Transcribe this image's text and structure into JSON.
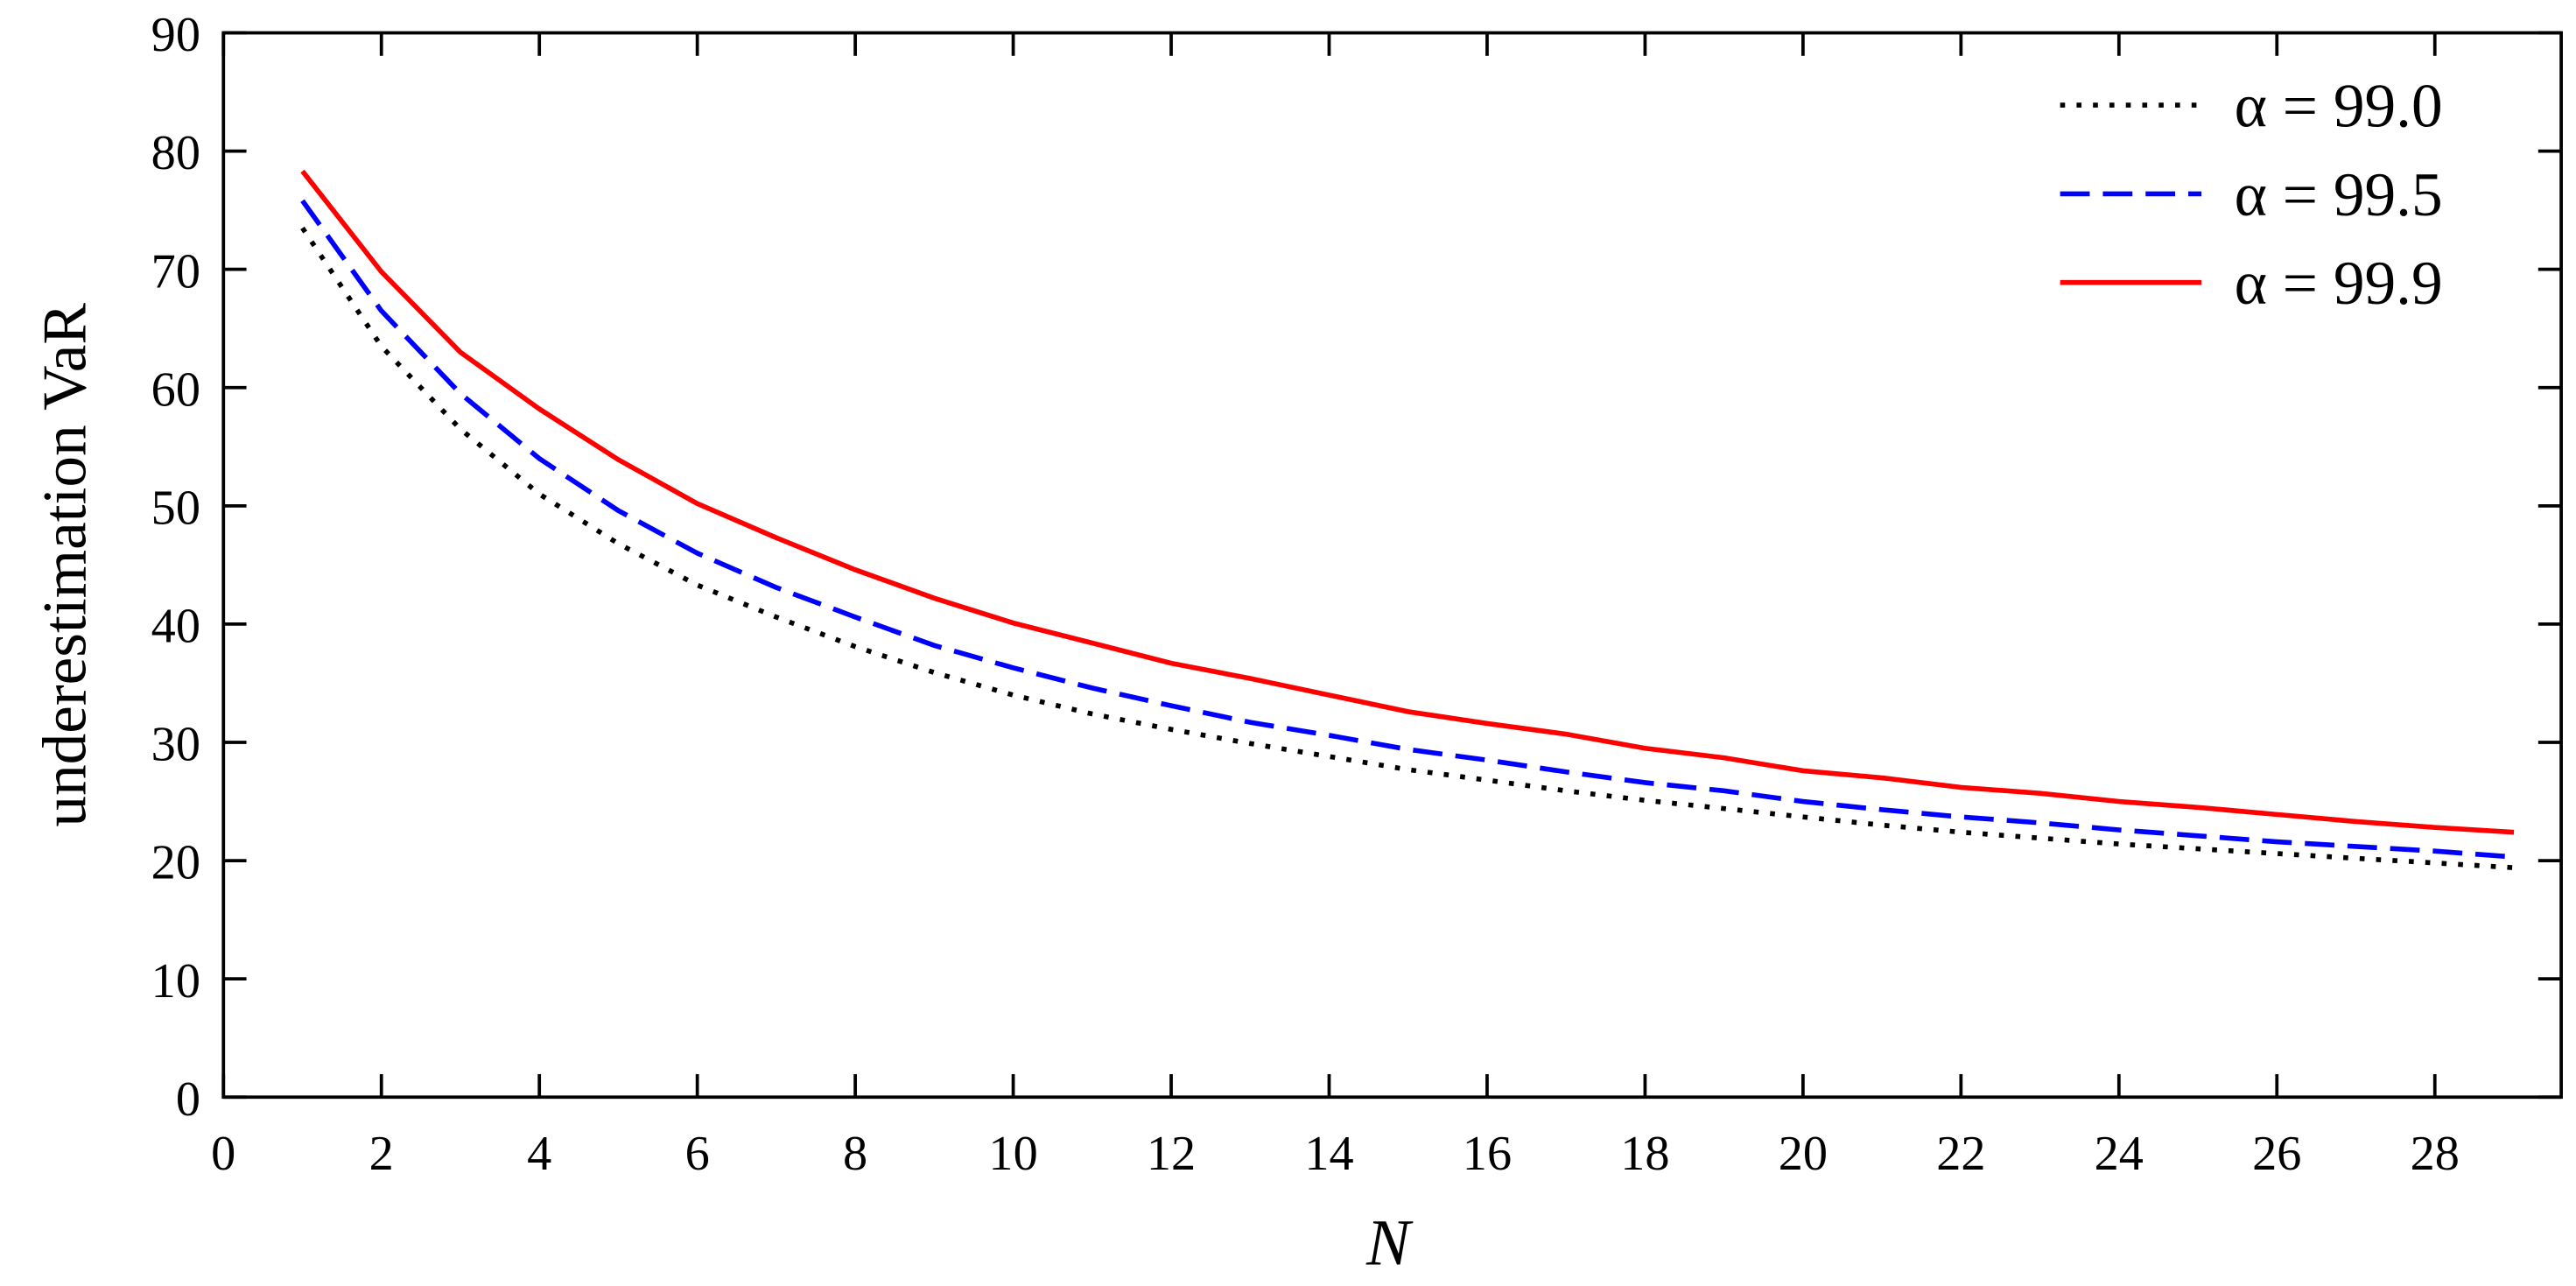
{
  "chart_data": {
    "type": "line",
    "x_label": "N",
    "y_label": "underestimation VaR",
    "x": [
      1,
      2,
      3,
      4,
      5,
      6,
      7,
      8,
      9,
      10,
      11,
      12,
      13,
      14,
      15,
      16,
      17,
      18,
      19,
      20,
      21,
      22,
      23,
      24,
      25,
      26,
      27,
      28,
      29
    ],
    "series": [
      {
        "name": "α = 99.0",
        "color": "#000000",
        "dash": "dotted",
        "values": [
          73.5,
          63.5,
          56.5,
          51.0,
          46.8,
          43.3,
          40.6,
          38.1,
          35.9,
          34.0,
          32.4,
          31.1,
          29.9,
          28.8,
          27.7,
          26.8,
          25.9,
          25.1,
          24.4,
          23.7,
          23.0,
          22.4,
          21.9,
          21.4,
          21.0,
          20.6,
          20.2,
          19.8,
          19.4
        ]
      },
      {
        "name": "α = 99.5",
        "color": "#0000ff",
        "dash": "dashed",
        "values": [
          75.8,
          66.5,
          59.5,
          54.0,
          49.6,
          46.0,
          43.1,
          40.6,
          38.2,
          36.3,
          34.6,
          33.1,
          31.7,
          30.6,
          29.4,
          28.5,
          27.5,
          26.6,
          25.9,
          25.0,
          24.3,
          23.7,
          23.2,
          22.6,
          22.1,
          21.6,
          21.2,
          20.8,
          20.3
        ]
      },
      {
        "name": "α = 99.9",
        "color": "#ff0000",
        "dash": "solid",
        "values": [
          78.3,
          69.8,
          63.0,
          58.2,
          53.9,
          50.2,
          47.3,
          44.6,
          42.2,
          40.1,
          38.4,
          36.7,
          35.4,
          34.0,
          32.6,
          31.6,
          30.7,
          29.5,
          28.7,
          27.6,
          27.0,
          26.2,
          25.7,
          25.0,
          24.5,
          23.9,
          23.3,
          22.8,
          22.4
        ]
      }
    ],
    "xlim": [
      0,
      29.6
    ],
    "xticks": [
      0,
      2,
      4,
      6,
      8,
      10,
      12,
      14,
      16,
      18,
      20,
      22,
      24,
      26,
      28
    ],
    "ylim": [
      0,
      90
    ],
    "yticks": [
      0,
      10,
      20,
      30,
      40,
      50,
      60,
      70,
      80,
      90
    ],
    "grid": false,
    "legend": "upper right"
  }
}
